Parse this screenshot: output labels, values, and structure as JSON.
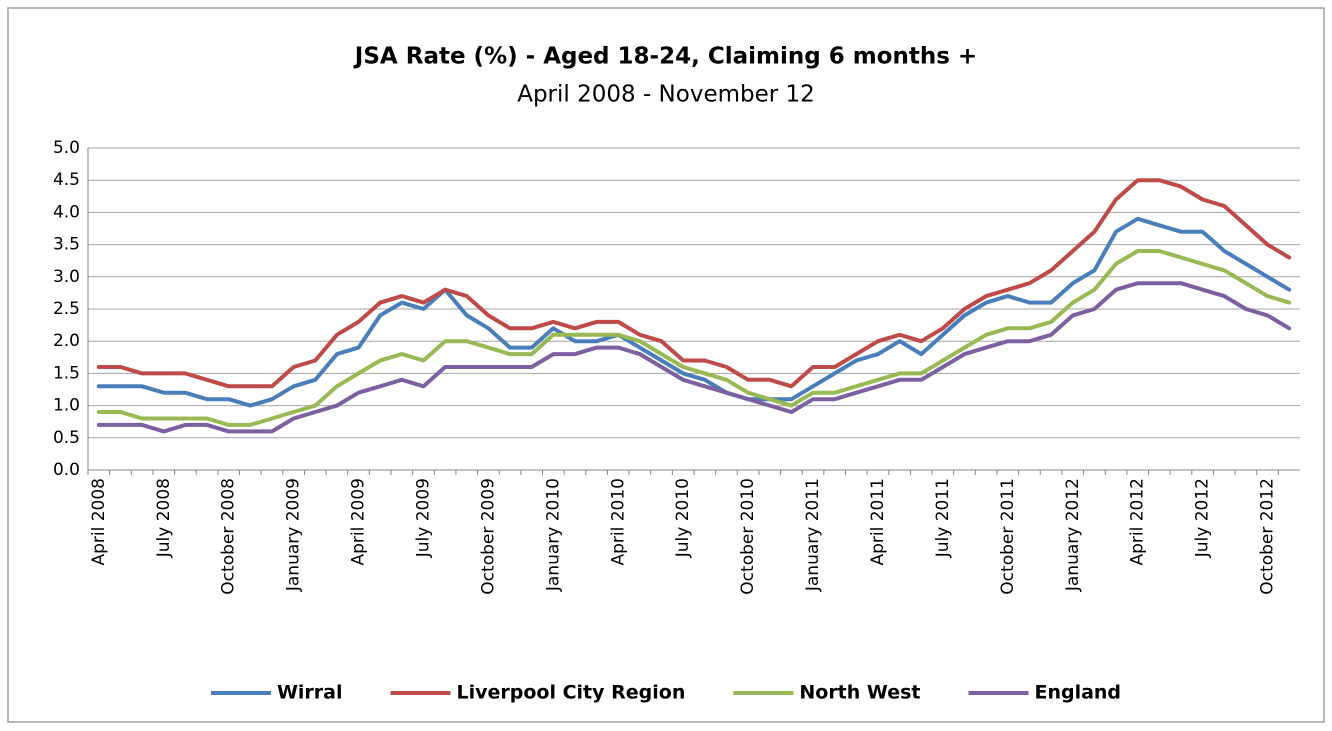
{
  "chart_data": {
    "type": "line",
    "title": "JSA Rate (%) - Aged 18-24, Claiming 6 months +",
    "subtitle": "April 2008 - November 12",
    "categories": [
      "April 2008",
      null,
      null,
      "July 2008",
      null,
      null,
      "October 2008",
      null,
      null,
      "January 2009",
      null,
      null,
      "April 2009",
      null,
      null,
      "July 2009",
      null,
      null,
      "October 2009",
      null,
      null,
      "January 2010",
      null,
      null,
      "April 2010",
      null,
      null,
      "July 2010",
      null,
      null,
      "October 2010",
      null,
      null,
      "January 2011",
      null,
      null,
      "April 2011",
      null,
      null,
      "July 2011",
      null,
      null,
      "October 2011",
      null,
      null,
      "January 2012",
      null,
      null,
      "April 2012",
      null,
      null,
      "July 2012",
      null,
      null,
      "October 2012",
      null
    ],
    "series": [
      {
        "name": "Wirral",
        "color": "#4a7ebb",
        "values": [
          1.3,
          1.3,
          1.3,
          1.2,
          1.2,
          1.1,
          1.1,
          1.0,
          1.1,
          1.3,
          1.4,
          1.8,
          1.9,
          2.4,
          2.6,
          2.5,
          2.8,
          2.4,
          2.2,
          1.9,
          1.9,
          2.2,
          2.0,
          2.0,
          2.1,
          1.9,
          1.7,
          1.5,
          1.4,
          1.2,
          1.1,
          1.1,
          1.1,
          1.3,
          1.5,
          1.7,
          1.8,
          2.0,
          1.8,
          2.1,
          2.4,
          2.6,
          2.7,
          2.6,
          2.6,
          2.9,
          3.1,
          3.7,
          3.9,
          3.8,
          3.7,
          3.7,
          3.4,
          3.2,
          3.0,
          2.8
        ]
      },
      {
        "name": "Liverpool City Region",
        "color": "#be4b48",
        "values": [
          1.6,
          1.6,
          1.5,
          1.5,
          1.5,
          1.4,
          1.3,
          1.3,
          1.3,
          1.6,
          1.7,
          2.1,
          2.3,
          2.6,
          2.7,
          2.6,
          2.8,
          2.7,
          2.4,
          2.2,
          2.2,
          2.3,
          2.2,
          2.3,
          2.3,
          2.1,
          2.0,
          1.7,
          1.7,
          1.6,
          1.4,
          1.4,
          1.3,
          1.6,
          1.6,
          1.8,
          2.0,
          2.1,
          2.0,
          2.2,
          2.5,
          2.7,
          2.8,
          2.9,
          3.1,
          3.4,
          3.7,
          4.2,
          4.5,
          4.5,
          4.4,
          4.2,
          4.1,
          3.8,
          3.5,
          3.3
        ]
      },
      {
        "name": "North West",
        "color": "#98b954",
        "values": [
          0.9,
          0.9,
          0.8,
          0.8,
          0.8,
          0.8,
          0.7,
          0.7,
          0.8,
          0.9,
          1.0,
          1.3,
          1.5,
          1.7,
          1.8,
          1.7,
          2.0,
          2.0,
          1.9,
          1.8,
          1.8,
          2.1,
          2.1,
          2.1,
          2.1,
          2.0,
          1.8,
          1.6,
          1.5,
          1.4,
          1.2,
          1.1,
          1.0,
          1.2,
          1.2,
          1.3,
          1.4,
          1.5,
          1.5,
          1.7,
          1.9,
          2.1,
          2.2,
          2.2,
          2.3,
          2.6,
          2.8,
          3.2,
          3.4,
          3.4,
          3.3,
          3.2,
          3.1,
          2.9,
          2.7,
          2.6
        ]
      },
      {
        "name": "England",
        "color": "#7d60a0",
        "values": [
          0.7,
          0.7,
          0.7,
          0.6,
          0.7,
          0.7,
          0.6,
          0.6,
          0.6,
          0.8,
          0.9,
          1.0,
          1.2,
          1.3,
          1.4,
          1.3,
          1.6,
          1.6,
          1.6,
          1.6,
          1.6,
          1.8,
          1.8,
          1.9,
          1.9,
          1.8,
          1.6,
          1.4,
          1.3,
          1.2,
          1.1,
          1.0,
          0.9,
          1.1,
          1.1,
          1.2,
          1.3,
          1.4,
          1.4,
          1.6,
          1.8,
          1.9,
          2.0,
          2.0,
          2.1,
          2.4,
          2.5,
          2.8,
          2.9,
          2.9,
          2.9,
          2.8,
          2.7,
          2.5,
          2.4,
          2.2
        ]
      }
    ],
    "ylim": [
      0,
      5
    ],
    "yticks": [
      {
        "value": 0,
        "label": "0.0"
      },
      0.5,
      {
        "value": 1,
        "label": "1.0"
      },
      1.5,
      {
        "value": 2,
        "label": "2.0"
      },
      2.5,
      {
        "value": 3,
        "label": "3.0"
      },
      3.5,
      {
        "value": 4,
        "label": "4.0"
      },
      4.5,
      {
        "value": 5,
        "label": "5.0"
      }
    ],
    "grid": true,
    "legend": "bottom"
  }
}
